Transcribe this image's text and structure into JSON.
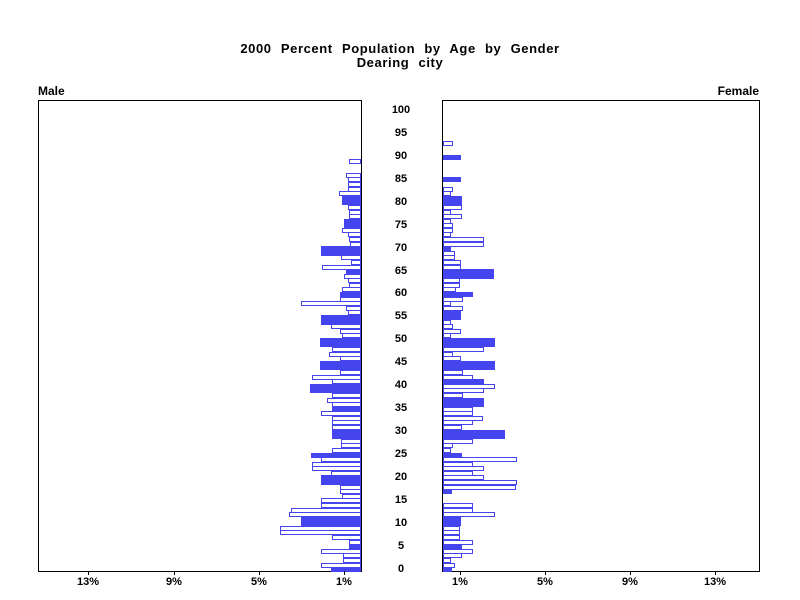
{
  "title": {
    "line1": "2000 Percent Population by Age by Gender",
    "line2": "Dearing city"
  },
  "panels": {
    "male_label": "Male",
    "female_label": "Female"
  },
  "colors": {
    "bar_blue": "#4545ef",
    "axis_black": "#000000",
    "background": "#ffffff"
  },
  "chart_data": {
    "type": "bar",
    "subtype": "population-pyramid",
    "title": "2000 Percent Population by Age by Gender",
    "subtitle": "Dearing city",
    "unit": "percent of population",
    "age_axis_labels": [
      100,
      95,
      90,
      85,
      80,
      75,
      70,
      65,
      60,
      55,
      50,
      45,
      40,
      35,
      30,
      25,
      20,
      15,
      10,
      5,
      0
    ],
    "percent_tick_labels_left": [
      "13%",
      "9%",
      "5%",
      "1%"
    ],
    "percent_tick_labels_right": [
      "1%",
      "5%",
      "9%",
      "13%"
    ],
    "x_axis_range_percent": [
      0,
      15
    ],
    "legend": {
      "solid": "filled blue bar",
      "hollow": "outlined bar"
    },
    "series": [
      {
        "name": "Male",
        "side": "left",
        "points": [
          [
            89,
            0.55,
            "hollow"
          ],
          [
            86,
            0.7,
            "hollow"
          ],
          [
            85,
            0.6,
            "hollow"
          ],
          [
            84,
            0.6,
            "hollow"
          ],
          [
            83,
            0.6,
            "hollow"
          ],
          [
            82,
            1.05,
            "hollow"
          ],
          [
            81,
            0.9,
            "solid"
          ],
          [
            80,
            0.9,
            "solid"
          ],
          [
            79,
            0.62,
            "hollow"
          ],
          [
            78,
            0.55,
            "hollow"
          ],
          [
            77,
            0.55,
            "hollow"
          ],
          [
            76,
            0.8,
            "solid"
          ],
          [
            75,
            0.8,
            "solid"
          ],
          [
            74,
            0.9,
            "hollow"
          ],
          [
            73,
            0.6,
            "hollow"
          ],
          [
            72,
            0.55,
            "hollow"
          ],
          [
            71,
            0.5,
            "hollow"
          ],
          [
            70,
            1.87,
            "solid"
          ],
          [
            69,
            1.87,
            "solid"
          ],
          [
            68,
            0.93,
            "hollow"
          ],
          [
            67,
            0.47,
            "hollow"
          ],
          [
            66,
            1.83,
            "hollow"
          ],
          [
            65,
            0.7,
            "solid"
          ],
          [
            64,
            0.8,
            "hollow"
          ],
          [
            63,
            0.6,
            "hollow"
          ],
          [
            62,
            0.55,
            "hollow"
          ],
          [
            61,
            0.9,
            "hollow"
          ],
          [
            60,
            1.0,
            "solid"
          ],
          [
            59,
            1.0,
            "hollow"
          ],
          [
            58,
            2.8,
            "hollow"
          ],
          [
            57,
            0.7,
            "hollow"
          ],
          [
            56,
            0.62,
            "hollow"
          ],
          [
            55,
            1.87,
            "solid"
          ],
          [
            54,
            1.87,
            "solid"
          ],
          [
            53,
            1.4,
            "hollow"
          ],
          [
            52,
            1.0,
            "hollow"
          ],
          [
            51,
            0.9,
            "hollow"
          ],
          [
            50,
            1.9,
            "solid"
          ],
          [
            49,
            1.9,
            "solid"
          ],
          [
            48,
            1.35,
            "hollow"
          ],
          [
            47,
            1.5,
            "hollow"
          ],
          [
            46,
            1.0,
            "hollow"
          ],
          [
            45,
            1.9,
            "solid"
          ],
          [
            44,
            1.9,
            "solid"
          ],
          [
            43,
            0.97,
            "hollow"
          ],
          [
            42,
            2.3,
            "hollow"
          ],
          [
            41,
            1.35,
            "hollow"
          ],
          [
            40,
            2.37,
            "solid"
          ],
          [
            39,
            2.37,
            "solid"
          ],
          [
            38,
            1.35,
            "hollow"
          ],
          [
            37,
            1.6,
            "hollow"
          ],
          [
            36,
            1.36,
            "hollow"
          ],
          [
            35,
            1.36,
            "solid"
          ],
          [
            34,
            1.87,
            "hollow"
          ],
          [
            33,
            1.36,
            "hollow"
          ],
          [
            32,
            1.36,
            "hollow"
          ],
          [
            31,
            1.36,
            "hollow"
          ],
          [
            30,
            1.36,
            "solid"
          ],
          [
            29,
            1.36,
            "solid"
          ],
          [
            28,
            0.93,
            "hollow"
          ],
          [
            27,
            0.93,
            "hollow"
          ],
          [
            26,
            1.36,
            "hollow"
          ],
          [
            25,
            2.34,
            "solid"
          ],
          [
            24,
            1.87,
            "hollow"
          ],
          [
            23,
            2.3,
            "hollow"
          ],
          [
            22,
            2.3,
            "hollow"
          ],
          [
            21,
            1.4,
            "hollow"
          ],
          [
            20,
            1.87,
            "solid"
          ],
          [
            19,
            1.87,
            "solid"
          ],
          [
            18,
            0.98,
            "hollow"
          ],
          [
            17,
            0.98,
            "hollow"
          ],
          [
            16,
            0.89,
            "hollow"
          ],
          [
            15,
            1.87,
            "hollow"
          ],
          [
            14,
            1.87,
            "hollow"
          ],
          [
            13,
            3.27,
            "hollow"
          ],
          [
            12,
            3.35,
            "hollow"
          ],
          [
            11,
            2.8,
            "solid"
          ],
          [
            10,
            2.8,
            "solid"
          ],
          [
            9,
            3.79,
            "hollow"
          ],
          [
            8,
            3.79,
            "hollow"
          ],
          [
            7,
            1.36,
            "hollow"
          ],
          [
            6,
            0.58,
            "hollow"
          ],
          [
            5,
            0.55,
            "solid"
          ],
          [
            4,
            1.87,
            "hollow"
          ],
          [
            3,
            0.86,
            "hollow"
          ],
          [
            2,
            0.86,
            "hollow"
          ],
          [
            1,
            1.87,
            "hollow"
          ],
          [
            0,
            1.4,
            "solid"
          ]
        ]
      },
      {
        "name": "Female",
        "side": "right",
        "points": [
          [
            93,
            0.47,
            "hollow"
          ],
          [
            90,
            0.84,
            "solid"
          ],
          [
            85,
            0.84,
            "solid"
          ],
          [
            83,
            0.47,
            "hollow"
          ],
          [
            82,
            0.37,
            "hollow"
          ],
          [
            81,
            0.89,
            "solid"
          ],
          [
            80,
            0.89,
            "solid"
          ],
          [
            79,
            0.89,
            "hollow"
          ],
          [
            78,
            0.37,
            "hollow"
          ],
          [
            77,
            0.89,
            "hollow"
          ],
          [
            76,
            0.37,
            "hollow"
          ],
          [
            75,
            0.47,
            "hollow"
          ],
          [
            74,
            0.47,
            "hollow"
          ],
          [
            73,
            0.37,
            "hollow"
          ],
          [
            72,
            1.93,
            "hollow"
          ],
          [
            71,
            1.93,
            "hollow"
          ],
          [
            70,
            0.37,
            "solid"
          ],
          [
            69,
            0.56,
            "hollow"
          ],
          [
            68,
            0.56,
            "hollow"
          ],
          [
            67,
            0.84,
            "hollow"
          ],
          [
            66,
            0.84,
            "hollow"
          ],
          [
            65,
            2.4,
            "solid"
          ],
          [
            64,
            2.4,
            "solid"
          ],
          [
            63,
            0.81,
            "hollow"
          ],
          [
            62,
            0.81,
            "hollow"
          ],
          [
            61,
            0.6,
            "hollow"
          ],
          [
            60,
            1.39,
            "solid"
          ],
          [
            59,
            0.93,
            "hollow"
          ],
          [
            58,
            0.37,
            "hollow"
          ],
          [
            57,
            0.93,
            "hollow"
          ],
          [
            56,
            0.84,
            "solid"
          ],
          [
            55,
            0.84,
            "solid"
          ],
          [
            54,
            0.37,
            "hollow"
          ],
          [
            53,
            0.48,
            "hollow"
          ],
          [
            52,
            0.84,
            "hollow"
          ],
          [
            51,
            0.37,
            "hollow"
          ],
          [
            50,
            2.43,
            "solid"
          ],
          [
            49,
            2.43,
            "solid"
          ],
          [
            48,
            1.93,
            "hollow"
          ],
          [
            47,
            0.45,
            "hollow"
          ],
          [
            46,
            0.84,
            "hollow"
          ],
          [
            45,
            2.43,
            "solid"
          ],
          [
            44,
            2.43,
            "solid"
          ],
          [
            43,
            0.93,
            "hollow"
          ],
          [
            42,
            1.39,
            "hollow"
          ],
          [
            41,
            1.93,
            "solid"
          ],
          [
            40,
            2.45,
            "hollow"
          ],
          [
            39,
            1.93,
            "hollow"
          ],
          [
            38,
            0.93,
            "hollow"
          ],
          [
            37,
            1.93,
            "solid"
          ],
          [
            36,
            1.93,
            "solid"
          ],
          [
            35,
            1.4,
            "hollow"
          ],
          [
            34,
            1.4,
            "hollow"
          ],
          [
            33,
            1.85,
            "hollow"
          ],
          [
            32,
            1.4,
            "hollow"
          ],
          [
            31,
            0.89,
            "hollow"
          ],
          [
            30,
            2.9,
            "solid"
          ],
          [
            29,
            2.9,
            "solid"
          ],
          [
            28,
            1.39,
            "hollow"
          ],
          [
            27,
            0.45,
            "hollow"
          ],
          [
            26,
            0.37,
            "hollow"
          ],
          [
            25,
            0.89,
            "solid"
          ],
          [
            24,
            3.44,
            "hollow"
          ],
          [
            23,
            1.39,
            "hollow"
          ],
          [
            22,
            1.93,
            "hollow"
          ],
          [
            21,
            1.39,
            "hollow"
          ],
          [
            20,
            1.93,
            "hollow"
          ],
          [
            19,
            3.44,
            "hollow"
          ],
          [
            18,
            3.41,
            "hollow"
          ],
          [
            17,
            0.4,
            "solid"
          ],
          [
            14,
            1.39,
            "hollow"
          ],
          [
            13,
            1.39,
            "hollow"
          ],
          [
            12,
            2.45,
            "hollow"
          ],
          [
            11,
            0.84,
            "solid"
          ],
          [
            10,
            0.84,
            "solid"
          ],
          [
            9,
            0.8,
            "hollow"
          ],
          [
            8,
            0.8,
            "hollow"
          ],
          [
            7,
            0.8,
            "hollow"
          ],
          [
            6,
            1.39,
            "hollow"
          ],
          [
            5,
            0.89,
            "solid"
          ],
          [
            4,
            1.39,
            "hollow"
          ],
          [
            3,
            0.89,
            "hollow"
          ],
          [
            2,
            0.37,
            "hollow"
          ],
          [
            1,
            0.58,
            "hollow"
          ],
          [
            0,
            0.4,
            "solid"
          ]
        ]
      }
    ]
  }
}
